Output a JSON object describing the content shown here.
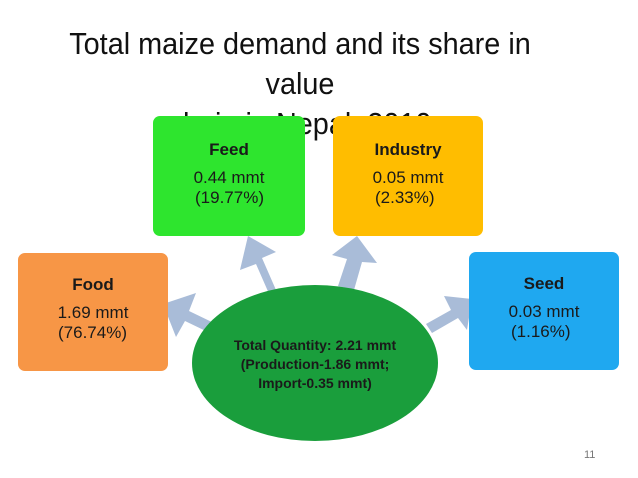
{
  "title": {
    "line1": "Total maize demand and its share in value",
    "line2": "chain in Nepal, 2010"
  },
  "center": {
    "line1": "Total Quantity:  2.21 mmt",
    "line2": "(Production-1.86 mmt;",
    "line3": "Import-0.35 mmt)"
  },
  "boxes": {
    "feed": {
      "name": "Feed",
      "amount": "0.44 mmt",
      "share": "(19.77%)",
      "color": "#2ee52e"
    },
    "industry": {
      "name": "Industry",
      "amount": "0.05 mmt",
      "share": "(2.33%)",
      "color": "#ffbd00"
    },
    "food": {
      "name": "Food",
      "amount": "1.69 mmt",
      "share": "(76.74%)",
      "color": "#f79646"
    },
    "seed": {
      "name": "Seed",
      "amount": "0.03 mmt",
      "share": "(1.16%)",
      "color": "#1fa8f0"
    }
  },
  "arrow_color": "#a9bcd8",
  "center_color": "#1a9e3c",
  "page_number": "11"
}
